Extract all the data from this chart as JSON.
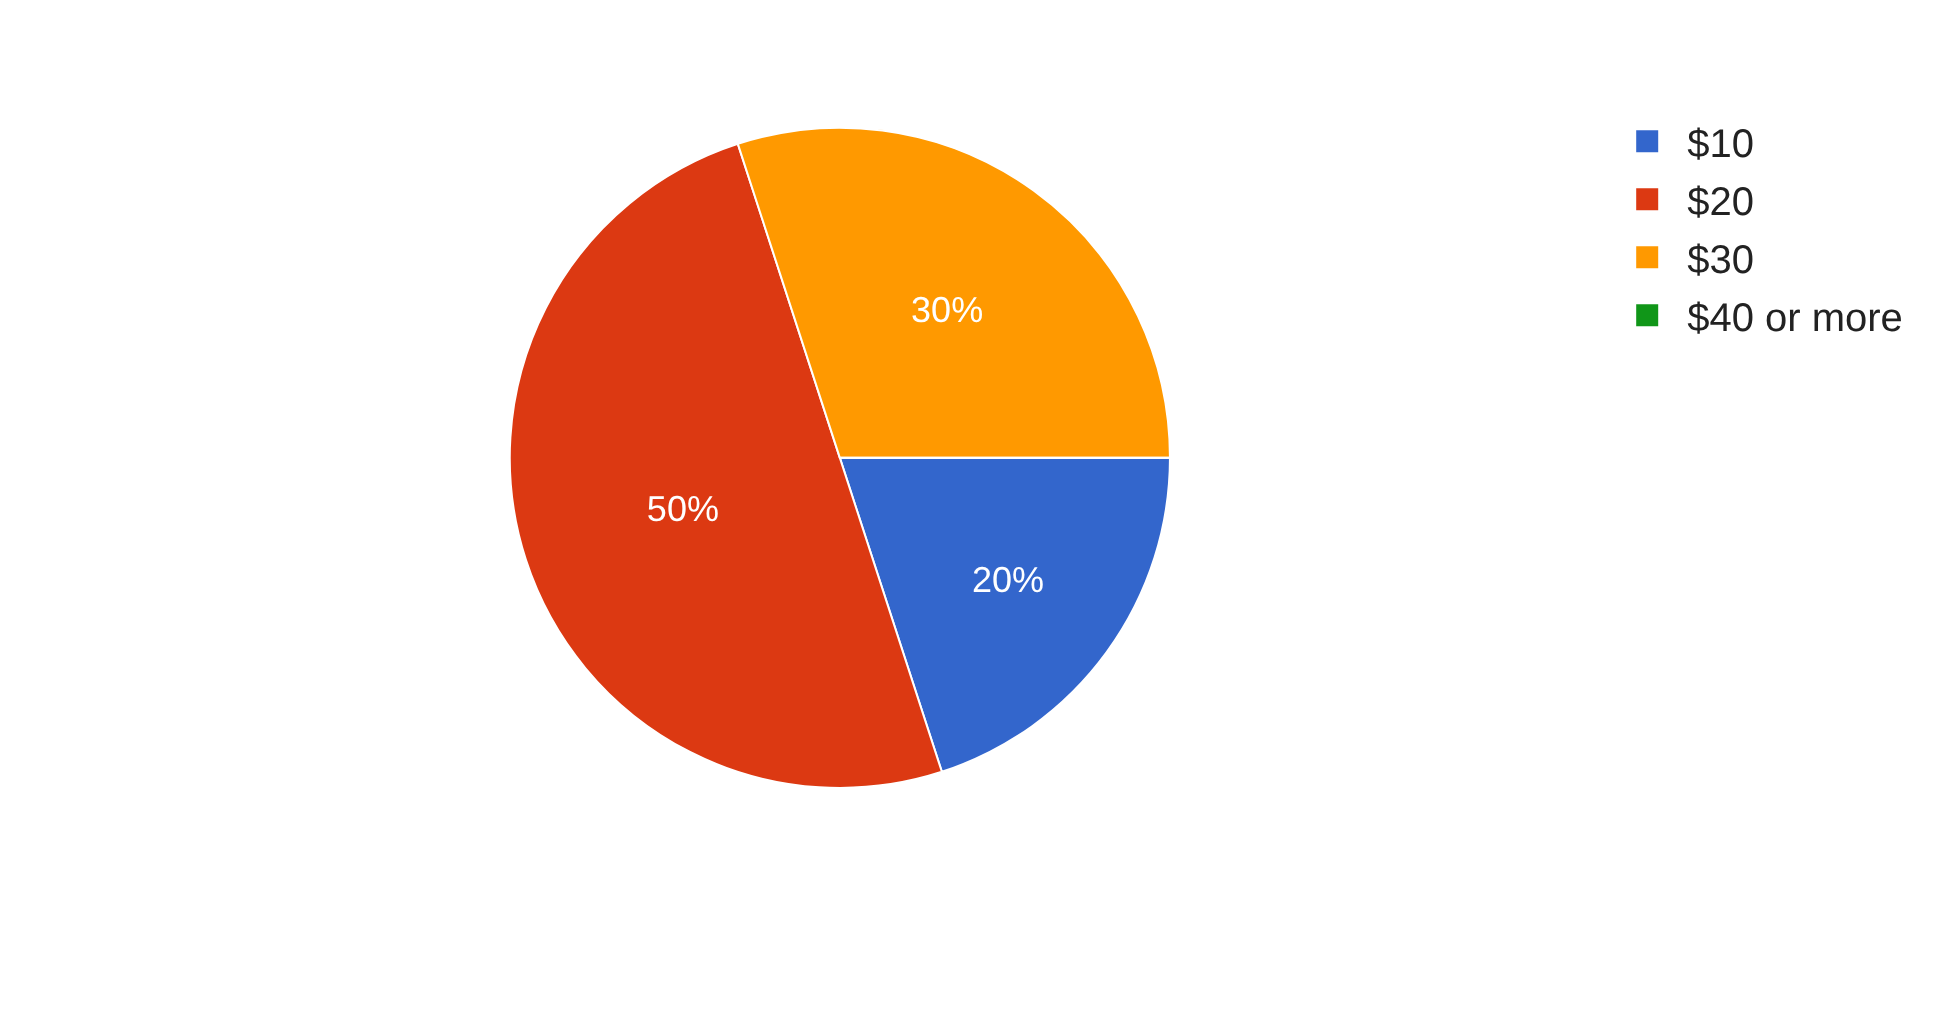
{
  "chart_data": {
    "type": "pie",
    "categories": [
      "$10",
      "$20",
      "$30",
      "$40 or more"
    ],
    "values": [
      20,
      50,
      30,
      0
    ],
    "colors": [
      "#3366cc",
      "#dc3912",
      "#ff9900",
      "#109618"
    ],
    "value_labels": [
      "20%",
      "50%",
      "30%",
      null
    ],
    "legend": "top right"
  }
}
